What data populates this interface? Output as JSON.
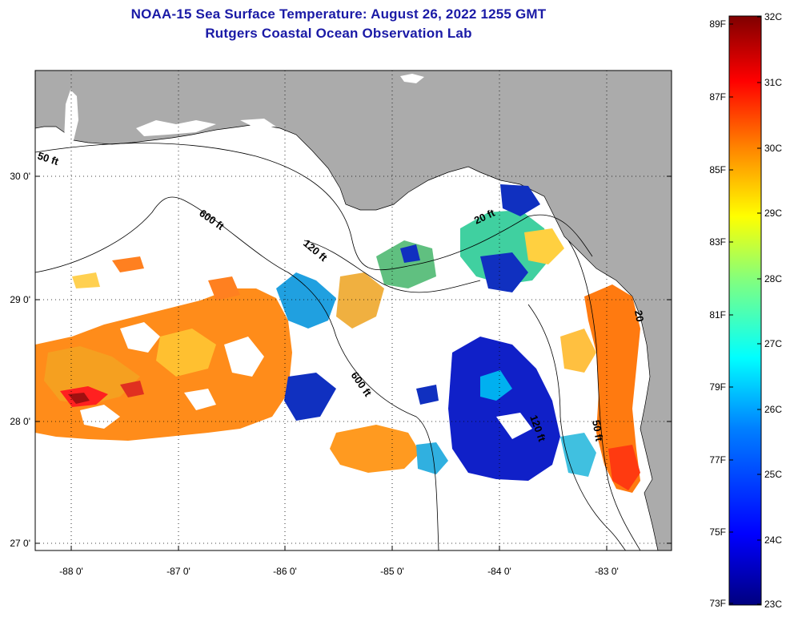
{
  "header": {
    "title": "NOAA-15 Sea Surface Temperature:  August 26, 2022 1255 GMT",
    "subtitle": "Rutgers Coastal Ocean Observation Lab"
  },
  "map": {
    "lat_labels": [
      "30 0'",
      "29 0'",
      "28 0'",
      "27 0'"
    ],
    "lon_labels": [
      "-88 0'",
      "-87 0'",
      "-86 0'",
      "-85 0'",
      "-84 0'",
      "-83 0'"
    ],
    "contour_labels": [
      "50 ft",
      "600 ft",
      "120 ft",
      "600 ft",
      "20 ft",
      "120 ft",
      "50 ft",
      "20"
    ]
  },
  "colorbar": {
    "fahrenheit_labels": [
      "89F",
      "87F",
      "85F",
      "83F",
      "81F",
      "79F",
      "77F",
      "75F",
      "73F"
    ],
    "celsius_labels": [
      "32C",
      "31C",
      "30C",
      "29C",
      "28C",
      "27C",
      "26C",
      "25C",
      "24C",
      "23C"
    ],
    "colors": [
      "#00007f",
      "#0000ff",
      "#007fff",
      "#00ffff",
      "#7fff7f",
      "#ffff00",
      "#ff7f00",
      "#ff0000",
      "#7f0000"
    ]
  }
}
